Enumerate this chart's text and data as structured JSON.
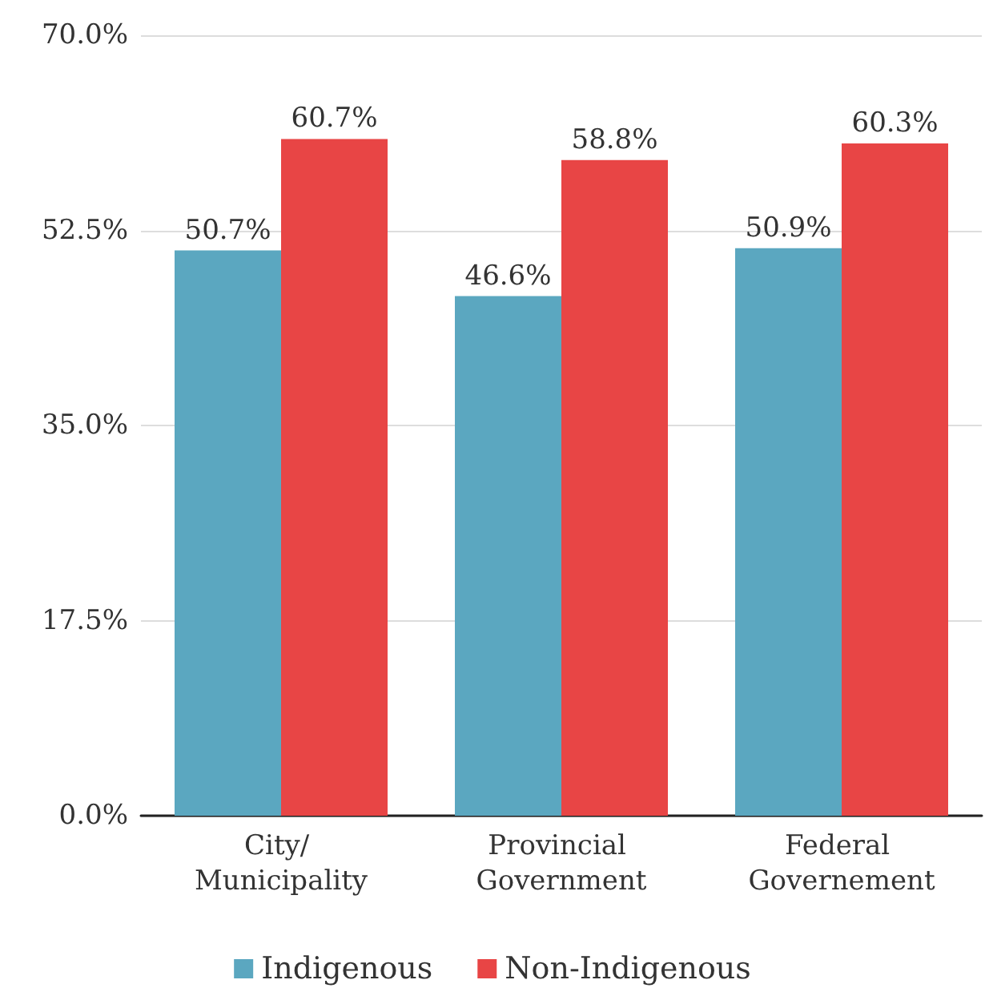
{
  "chart_data": {
    "type": "bar",
    "categories": [
      "City/ Municipality",
      "Provincial Government",
      "Federal Governement"
    ],
    "series": [
      {
        "name": "Indigenous",
        "color": "#5ba7c0",
        "values": [
          50.7,
          46.6,
          50.9
        ],
        "value_labels": [
          "50.7%",
          "46.6%",
          "50.9%"
        ]
      },
      {
        "name": "Non-Indigenous",
        "color": "#e84545",
        "values": [
          60.7,
          58.8,
          60.3
        ],
        "value_labels": [
          "60.7%",
          "58.8%",
          "60.3%"
        ]
      }
    ],
    "ylim": [
      0,
      70
    ],
    "yticks": [
      {
        "value": 0,
        "label": "0.0%"
      },
      {
        "value": 17.5,
        "label": "17.5%"
      },
      {
        "value": 35,
        "label": "35.0%"
      },
      {
        "value": 52.5,
        "label": "52.5%"
      },
      {
        "value": 70,
        "label": "70.0%"
      }
    ],
    "grid": "y",
    "legend": "bottom"
  }
}
